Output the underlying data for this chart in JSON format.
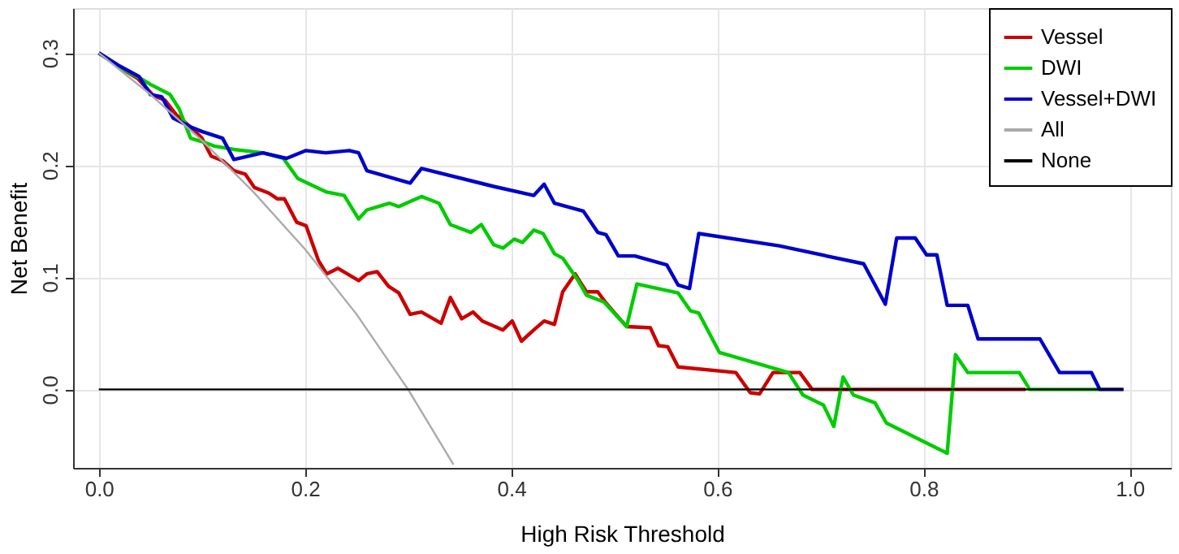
{
  "chart_data": {
    "type": "line",
    "xlabel": "High Risk Threshold",
    "ylabel": "Net Benefit",
    "xlim": [
      -0.025,
      1.04
    ],
    "ylim": [
      -0.07,
      0.34
    ],
    "xticks": [
      {
        "value": 0,
        "label": "0.0"
      },
      0.2,
      0.4,
      0.6,
      0.8,
      {
        "value": 1,
        "label": "1.0"
      }
    ],
    "yticks": [
      {
        "value": 0,
        "label": "0.0"
      },
      0.1,
      0.2,
      0.3
    ],
    "grid": true,
    "legend": "top right",
    "line_style": "solid",
    "series": [
      {
        "name": "Vessel",
        "color": "#cc0000",
        "x": [
          0,
          0.019,
          0.038,
          0.053,
          0.064,
          0.075,
          0.089,
          0.1,
          0.109,
          0.12,
          0.131,
          0.142,
          0.151,
          0.165,
          0.173,
          0.18,
          0.192,
          0.201,
          0.213,
          0.221,
          0.232,
          0.252,
          0.26,
          0.27,
          0.281,
          0.291,
          0.302,
          0.313,
          0.332,
          0.341,
          0.352,
          0.363,
          0.372,
          0.392,
          0.401,
          0.41,
          0.422,
          0.432,
          0.442,
          0.45,
          0.462,
          0.473,
          0.484,
          0.492,
          0.512,
          0.535,
          0.543,
          0.552,
          0.562,
          0.618,
          0.632,
          0.641,
          0.654,
          0.68,
          0.692,
          0.899
        ],
        "values": [
          0.3,
          0.288,
          0.277,
          0.262,
          0.258,
          0.245,
          0.234,
          0.224,
          0.208,
          0.204,
          0.195,
          0.192,
          0.18,
          0.175,
          0.17,
          0.17,
          0.149,
          0.146,
          0.115,
          0.103,
          0.108,
          0.097,
          0.103,
          0.105,
          0.092,
          0.086,
          0.067,
          0.069,
          0.059,
          0.082,
          0.063,
          0.069,
          0.061,
          0.053,
          0.061,
          0.043,
          0.053,
          0.061,
          0.058,
          0.087,
          0.103,
          0.087,
          0.087,
          0.077,
          0.056,
          0.055,
          0.039,
          0.038,
          0.02,
          0.015,
          -0.003,
          -0.004,
          0.015,
          0.015,
          0.0,
          0.0
        ]
      },
      {
        "name": "DWI",
        "color": "#00cc00",
        "x": [
          0,
          0.019,
          0.041,
          0.05,
          0.069,
          0.078,
          0.089,
          0.1,
          0.112,
          0.131,
          0.159,
          0.179,
          0.193,
          0.221,
          0.238,
          0.252,
          0.26,
          0.282,
          0.291,
          0.313,
          0.33,
          0.341,
          0.361,
          0.371,
          0.383,
          0.392,
          0.403,
          0.411,
          0.422,
          0.431,
          0.442,
          0.45,
          0.465,
          0.473,
          0.49,
          0.512,
          0.522,
          0.562,
          0.574,
          0.582,
          0.602,
          0.669,
          0.683,
          0.703,
          0.713,
          0.722,
          0.732,
          0.753,
          0.764,
          0.823,
          0.831,
          0.843,
          0.893,
          0.903,
          0.971
        ],
        "values": [
          0.3,
          0.288,
          0.277,
          0.272,
          0.263,
          0.25,
          0.224,
          0.221,
          0.217,
          0.214,
          0.211,
          0.206,
          0.188,
          0.176,
          0.173,
          0.152,
          0.16,
          0.166,
          0.163,
          0.172,
          0.166,
          0.147,
          0.14,
          0.147,
          0.129,
          0.126,
          0.134,
          0.131,
          0.142,
          0.139,
          0.121,
          0.117,
          0.097,
          0.084,
          0.078,
          0.056,
          0.094,
          0.086,
          0.07,
          0.068,
          0.033,
          0.015,
          -0.005,
          -0.014,
          -0.033,
          0.011,
          -0.005,
          -0.012,
          -0.03,
          -0.057,
          0.031,
          0.015,
          0.015,
          0.0,
          0.0
        ]
      },
      {
        "name": "Vessel+DWI",
        "color": "#0000cc",
        "x": [
          0,
          0.019,
          0.039,
          0.05,
          0.061,
          0.072,
          0.089,
          0.1,
          0.12,
          0.131,
          0.159,
          0.182,
          0.201,
          0.22,
          0.243,
          0.252,
          0.26,
          0.302,
          0.313,
          0.383,
          0.422,
          0.432,
          0.442,
          0.47,
          0.484,
          0.492,
          0.504,
          0.52,
          0.551,
          0.562,
          0.573,
          0.582,
          0.66,
          0.742,
          0.763,
          0.774,
          0.792,
          0.803,
          0.813,
          0.823,
          0.843,
          0.853,
          0.913,
          0.932,
          0.963,
          0.971,
          0.994
        ],
        "values": [
          0.3,
          0.289,
          0.279,
          0.263,
          0.261,
          0.242,
          0.234,
          0.23,
          0.224,
          0.205,
          0.211,
          0.206,
          0.213,
          0.211,
          0.213,
          0.211,
          0.195,
          0.184,
          0.197,
          0.181,
          0.173,
          0.183,
          0.166,
          0.159,
          0.14,
          0.138,
          0.119,
          0.119,
          0.111,
          0.093,
          0.09,
          0.139,
          0.128,
          0.112,
          0.076,
          0.135,
          0.135,
          0.12,
          0.12,
          0.075,
          0.075,
          0.045,
          0.045,
          0.015,
          0.015,
          0.0,
          0.0
        ]
      },
      {
        "name": "All",
        "color": "#aaaaaa",
        "x": [
          0,
          0.05,
          0.1,
          0.15,
          0.2,
          0.25,
          0.3,
          0.344
        ],
        "values": [
          0.3,
          0.263,
          0.222,
          0.176,
          0.125,
          0.067,
          0.0,
          -0.067
        ]
      },
      {
        "name": "None",
        "color": "#000000",
        "x": [
          0,
          0.994
        ],
        "values": [
          0.0,
          0.0
        ]
      }
    ]
  }
}
